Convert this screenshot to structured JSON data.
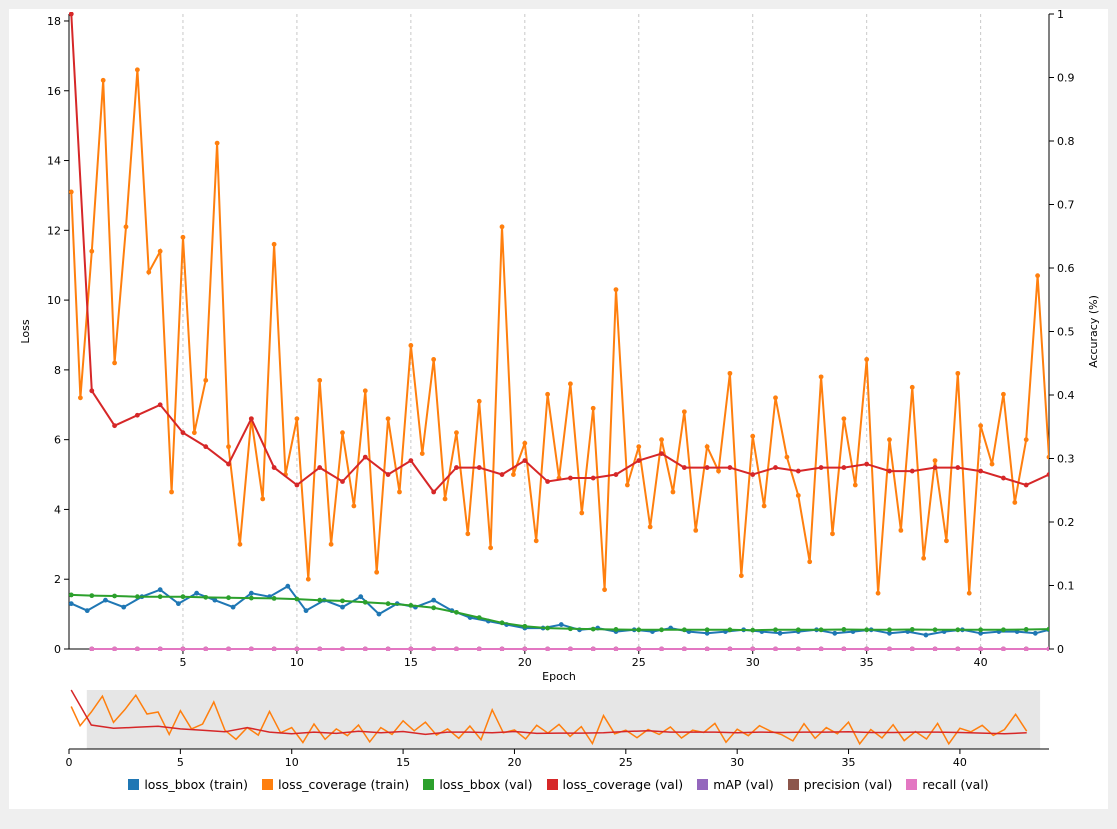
{
  "chart_data": [
    {
      "type": "line",
      "xlabel": "Epoch",
      "ylabel": "Loss",
      "y2label": "Accuracy (%)",
      "xlim": [
        0,
        43
      ],
      "ylim": [
        0,
        18.2
      ],
      "y2lim": [
        0,
        1
      ],
      "x_ticks": [
        5,
        10,
        15,
        20,
        25,
        30,
        35,
        40
      ],
      "y_ticks": [
        0,
        2,
        4,
        6,
        8,
        10,
        12,
        14,
        16,
        18
      ],
      "y2_ticks": [
        0,
        0.1,
        0.2,
        0.3,
        0.4,
        0.5,
        0.6,
        0.7,
        0.8,
        0.9,
        1
      ],
      "grid": "vertical dashed at x ticks",
      "series": [
        {
          "name": "loss_bbox (train)",
          "color": "#1f77b4",
          "axis": "left",
          "markers": true,
          "x": [
            0.1,
            0.8,
            1.6,
            2.4,
            3.2,
            4.0,
            4.8,
            5.6,
            6.4,
            7.2,
            8.0,
            8.8,
            9.6,
            10.4,
            11.2,
            12.0,
            12.8,
            13.6,
            14.4,
            15.2,
            16.0,
            16.8,
            17.6,
            18.4,
            19.2,
            20.0,
            20.8,
            21.6,
            22.4,
            23.2,
            24.0,
            24.8,
            25.6,
            26.4,
            27.2,
            28.0,
            28.8,
            29.6,
            30.4,
            31.2,
            32.0,
            32.8,
            33.6,
            34.4,
            35.2,
            36.0,
            36.8,
            37.6,
            38.4,
            39.2,
            40.0,
            40.8,
            41.6,
            42.4,
            43.0
          ],
          "y": [
            1.3,
            1.1,
            1.4,
            1.2,
            1.5,
            1.7,
            1.3,
            1.6,
            1.4,
            1.2,
            1.6,
            1.5,
            1.8,
            1.1,
            1.4,
            1.2,
            1.5,
            1.0,
            1.3,
            1.2,
            1.4,
            1.1,
            0.9,
            0.8,
            0.7,
            0.6,
            0.6,
            0.7,
            0.55,
            0.6,
            0.5,
            0.55,
            0.5,
            0.6,
            0.5,
            0.45,
            0.5,
            0.55,
            0.5,
            0.45,
            0.5,
            0.55,
            0.45,
            0.5,
            0.55,
            0.45,
            0.5,
            0.4,
            0.5,
            0.55,
            0.45,
            0.5,
            0.5,
            0.45,
            0.55
          ]
        },
        {
          "name": "loss_coverage (train)",
          "color": "#ff7f0e",
          "axis": "left",
          "markers": true,
          "x": [
            0.1,
            0.5,
            1.0,
            1.5,
            2.0,
            2.5,
            3.0,
            3.5,
            4.0,
            4.5,
            5.0,
            5.5,
            6.0,
            6.5,
            7.0,
            7.5,
            8.0,
            8.5,
            9.0,
            9.5,
            10.0,
            10.5,
            11.0,
            11.5,
            12.0,
            12.5,
            13.0,
            13.5,
            14.0,
            14.5,
            15.0,
            15.5,
            16.0,
            16.5,
            17.0,
            17.5,
            18.0,
            18.5,
            19.0,
            19.5,
            20.0,
            20.5,
            21.0,
            21.5,
            22.0,
            22.5,
            23.0,
            23.5,
            24.0,
            24.5,
            25.0,
            25.5,
            26.0,
            26.5,
            27.0,
            27.5,
            28.0,
            28.5,
            29.0,
            29.5,
            30.0,
            30.5,
            31.0,
            31.5,
            32.0,
            32.5,
            33.0,
            33.5,
            34.0,
            34.5,
            35.0,
            35.5,
            36.0,
            36.5,
            37.0,
            37.5,
            38.0,
            38.5,
            39.0,
            39.5,
            40.0,
            40.5,
            41.0,
            41.5,
            42.0,
            42.5,
            43.0
          ],
          "y": [
            13.1,
            7.2,
            11.4,
            16.3,
            8.2,
            12.1,
            16.6,
            10.8,
            11.4,
            4.5,
            11.8,
            6.2,
            7.7,
            14.5,
            5.8,
            3.0,
            6.6,
            4.3,
            11.6,
            5.0,
            6.6,
            2.0,
            7.7,
            3.0,
            6.2,
            4.1,
            7.4,
            2.2,
            6.6,
            4.5,
            8.7,
            5.6,
            8.3,
            4.3,
            6.2,
            3.3,
            7.1,
            2.9,
            12.1,
            5.0,
            5.9,
            3.1,
            7.3,
            4.9,
            7.6,
            3.9,
            6.9,
            1.7,
            10.3,
            4.7,
            5.8,
            3.5,
            6.0,
            4.5,
            6.8,
            3.4,
            5.8,
            5.1,
            7.9,
            2.1,
            6.1,
            4.1,
            7.2,
            5.5,
            4.4,
            2.5,
            7.8,
            3.3,
            6.6,
            4.7,
            8.3,
            1.6,
            6.0,
            3.4,
            7.5,
            2.6,
            5.4,
            3.1,
            7.9,
            1.6,
            6.4,
            5.3,
            7.3,
            4.2,
            6.0,
            10.7,
            5.5
          ]
        },
        {
          "name": "loss_bbox (val)",
          "color": "#2ca02c",
          "axis": "left",
          "markers": true,
          "x": [
            0.1,
            1,
            2,
            3,
            4,
            5,
            6,
            7,
            8,
            9,
            10,
            11,
            12,
            13,
            14,
            15,
            16,
            17,
            18,
            19,
            20,
            21,
            22,
            23,
            24,
            25,
            26,
            27,
            28,
            29,
            30,
            31,
            32,
            33,
            34,
            35,
            36,
            37,
            38,
            39,
            40,
            41,
            42,
            43
          ],
          "y": [
            1.55,
            1.53,
            1.52,
            1.5,
            1.5,
            1.5,
            1.48,
            1.47,
            1.46,
            1.45,
            1.43,
            1.4,
            1.38,
            1.34,
            1.3,
            1.25,
            1.18,
            1.05,
            0.9,
            0.75,
            0.65,
            0.6,
            0.58,
            0.57,
            0.56,
            0.55,
            0.55,
            0.55,
            0.55,
            0.55,
            0.54,
            0.55,
            0.55,
            0.55,
            0.56,
            0.55,
            0.55,
            0.56,
            0.55,
            0.55,
            0.55,
            0.55,
            0.56,
            0.57
          ]
        },
        {
          "name": "loss_coverage (val)",
          "color": "#d62728",
          "axis": "left",
          "markers": true,
          "x": [
            0.1,
            1,
            2,
            3,
            4,
            5,
            6,
            7,
            8,
            9,
            10,
            11,
            12,
            13,
            14,
            15,
            16,
            17,
            18,
            19,
            20,
            21,
            22,
            23,
            24,
            25,
            26,
            27,
            28,
            29,
            30,
            31,
            32,
            33,
            34,
            35,
            36,
            37,
            38,
            39,
            40,
            41,
            42,
            43
          ],
          "y": [
            18.2,
            7.4,
            6.4,
            6.7,
            7.0,
            6.2,
            5.8,
            5.3,
            6.6,
            5.2,
            4.7,
            5.2,
            4.8,
            5.5,
            5.0,
            5.4,
            4.5,
            5.2,
            5.2,
            5.0,
            5.4,
            4.8,
            4.9,
            4.9,
            5.0,
            5.4,
            5.6,
            5.2,
            5.2,
            5.2,
            5.0,
            5.2,
            5.1,
            5.2,
            5.2,
            5.3,
            5.1,
            5.1,
            5.2,
            5.2,
            5.1,
            4.9,
            4.7,
            5.0
          ]
        },
        {
          "name": "mAP (val)",
          "color": "#9467bd",
          "axis": "right",
          "markers": true,
          "x": [
            1,
            2,
            3,
            4,
            5,
            6,
            7,
            8,
            9,
            10,
            11,
            12,
            13,
            14,
            15,
            16,
            17,
            18,
            19,
            20,
            21,
            22,
            23,
            24,
            25,
            26,
            27,
            28,
            29,
            30,
            31,
            32,
            33,
            34,
            35,
            36,
            37,
            38,
            39,
            40,
            41,
            42,
            43
          ],
          "y": [
            0,
            0,
            0,
            0,
            0,
            0,
            0,
            0,
            0,
            0,
            0,
            0,
            0,
            0,
            0,
            0,
            0,
            0,
            0,
            0,
            0,
            0,
            0,
            0,
            0,
            0,
            0,
            0,
            0,
            0,
            0,
            0,
            0,
            0,
            0,
            0,
            0,
            0,
            0,
            0,
            0,
            0,
            0
          ]
        },
        {
          "name": "precision (val)",
          "color": "#8c564b",
          "axis": "right",
          "markers": true,
          "x": [
            1,
            2,
            3,
            4,
            5,
            6,
            7,
            8,
            9,
            10,
            11,
            12,
            13,
            14,
            15,
            16,
            17,
            18,
            19,
            20,
            21,
            22,
            23,
            24,
            25,
            26,
            27,
            28,
            29,
            30,
            31,
            32,
            33,
            34,
            35,
            36,
            37,
            38,
            39,
            40,
            41,
            42,
            43
          ],
          "y": [
            0,
            0,
            0,
            0,
            0,
            0,
            0,
            0,
            0,
            0,
            0,
            0,
            0,
            0,
            0,
            0,
            0,
            0,
            0,
            0,
            0,
            0,
            0,
            0,
            0,
            0,
            0,
            0,
            0,
            0,
            0,
            0,
            0,
            0,
            0,
            0,
            0,
            0,
            0,
            0,
            0,
            0,
            0
          ]
        },
        {
          "name": "recall (val)",
          "color": "#e377c2",
          "axis": "right",
          "markers": true,
          "x": [
            1,
            2,
            3,
            4,
            5,
            6,
            7,
            8,
            9,
            10,
            11,
            12,
            13,
            14,
            15,
            16,
            17,
            18,
            19,
            20,
            21,
            22,
            23,
            24,
            25,
            26,
            27,
            28,
            29,
            30,
            31,
            32,
            33,
            34,
            35,
            36,
            37,
            38,
            39,
            40,
            41,
            42,
            43
          ],
          "y": [
            0,
            0,
            0,
            0,
            0,
            0,
            0,
            0,
            0,
            0,
            0,
            0,
            0,
            0,
            0,
            0,
            0,
            0,
            0,
            0,
            0,
            0,
            0,
            0,
            0,
            0,
            0,
            0,
            0,
            0,
            0,
            0,
            0,
            0,
            0,
            0,
            0,
            0,
            0,
            0,
            0,
            0,
            0
          ]
        }
      ]
    },
    {
      "type": "line",
      "role": "overview / brush navigator",
      "xlim": [
        0,
        44
      ],
      "x_ticks": [
        0,
        5,
        10,
        15,
        20,
        25,
        30,
        35,
        40
      ],
      "brush_range": [
        0.8,
        43.6
      ],
      "series_shown": [
        "loss_coverage (train)",
        "loss_coverage (val)"
      ]
    }
  ],
  "legend": [
    {
      "label": "loss_bbox (train)",
      "color": "#1f77b4"
    },
    {
      "label": "loss_coverage (train)",
      "color": "#ff7f0e"
    },
    {
      "label": "loss_bbox (val)",
      "color": "#2ca02c"
    },
    {
      "label": "loss_coverage (val)",
      "color": "#d62728"
    },
    {
      "label": "mAP (val)",
      "color": "#9467bd"
    },
    {
      "label": "precision (val)",
      "color": "#8c564b"
    },
    {
      "label": "recall (val)",
      "color": "#e377c2"
    }
  ]
}
